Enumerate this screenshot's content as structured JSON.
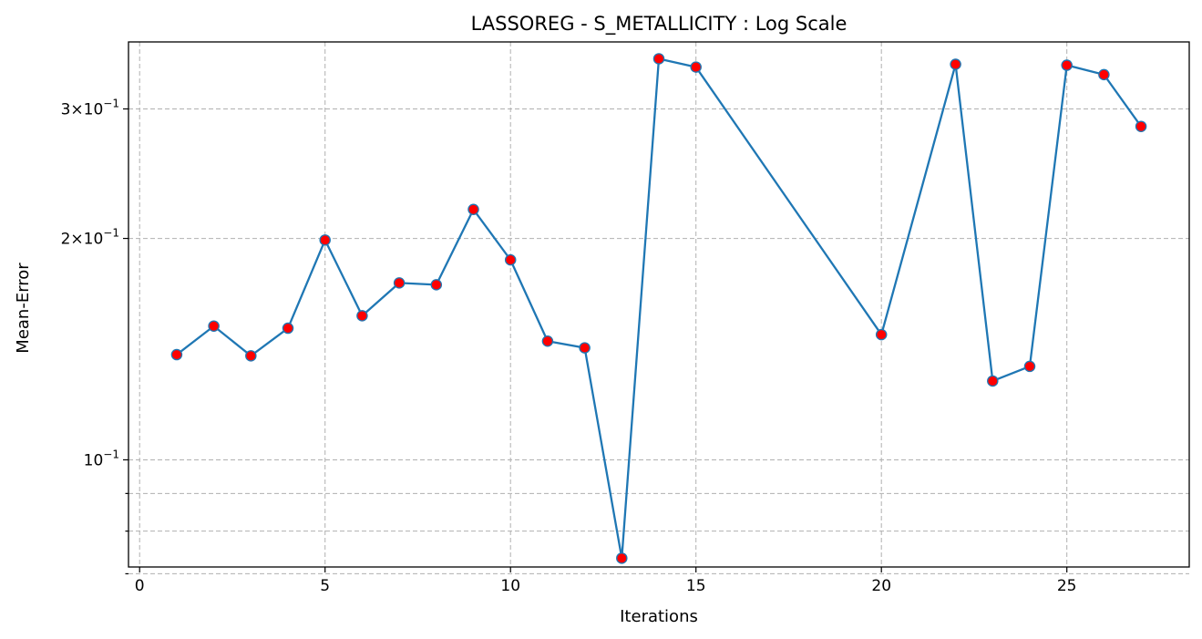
{
  "chart_data": {
    "type": "line",
    "title": "LASSOREG - S_METALLICITY : Log Scale",
    "xlabel": "Iterations",
    "ylabel": "Mean-Error",
    "xlim": [
      -0.3,
      28.3
    ],
    "ylim": [
      0.0715,
      0.37
    ],
    "yscale": "log",
    "grid": true,
    "x_ticks": [
      0,
      5,
      10,
      15,
      20,
      25
    ],
    "y_major_ticks": [
      {
        "value": 0.1,
        "mantissa": "",
        "base": "10",
        "exp": "−1"
      },
      {
        "value": 0.2,
        "mantissa": "2×",
        "base": "10",
        "exp": "−1"
      },
      {
        "value": 0.3,
        "mantissa": "3×",
        "base": "10",
        "exp": "−1"
      }
    ],
    "y_minor_ticks": [
      0.07,
      0.08,
      0.09
    ],
    "series": [
      {
        "line_color": "#1f77b4",
        "marker_face": "#ff0000",
        "marker_edge": "#1f77b4",
        "x": [
          1,
          2,
          3,
          4,
          5,
          6,
          7,
          8,
          9,
          10,
          11,
          12,
          13,
          14,
          15,
          20,
          22,
          23,
          24,
          25,
          26,
          27
        ],
        "y": [
          0.139,
          0.152,
          0.1385,
          0.151,
          0.199,
          0.157,
          0.174,
          0.173,
          0.219,
          0.187,
          0.145,
          0.142,
          0.0735,
          0.351,
          0.342,
          0.148,
          0.345,
          0.128,
          0.134,
          0.344,
          0.334,
          0.284
        ]
      }
    ]
  }
}
